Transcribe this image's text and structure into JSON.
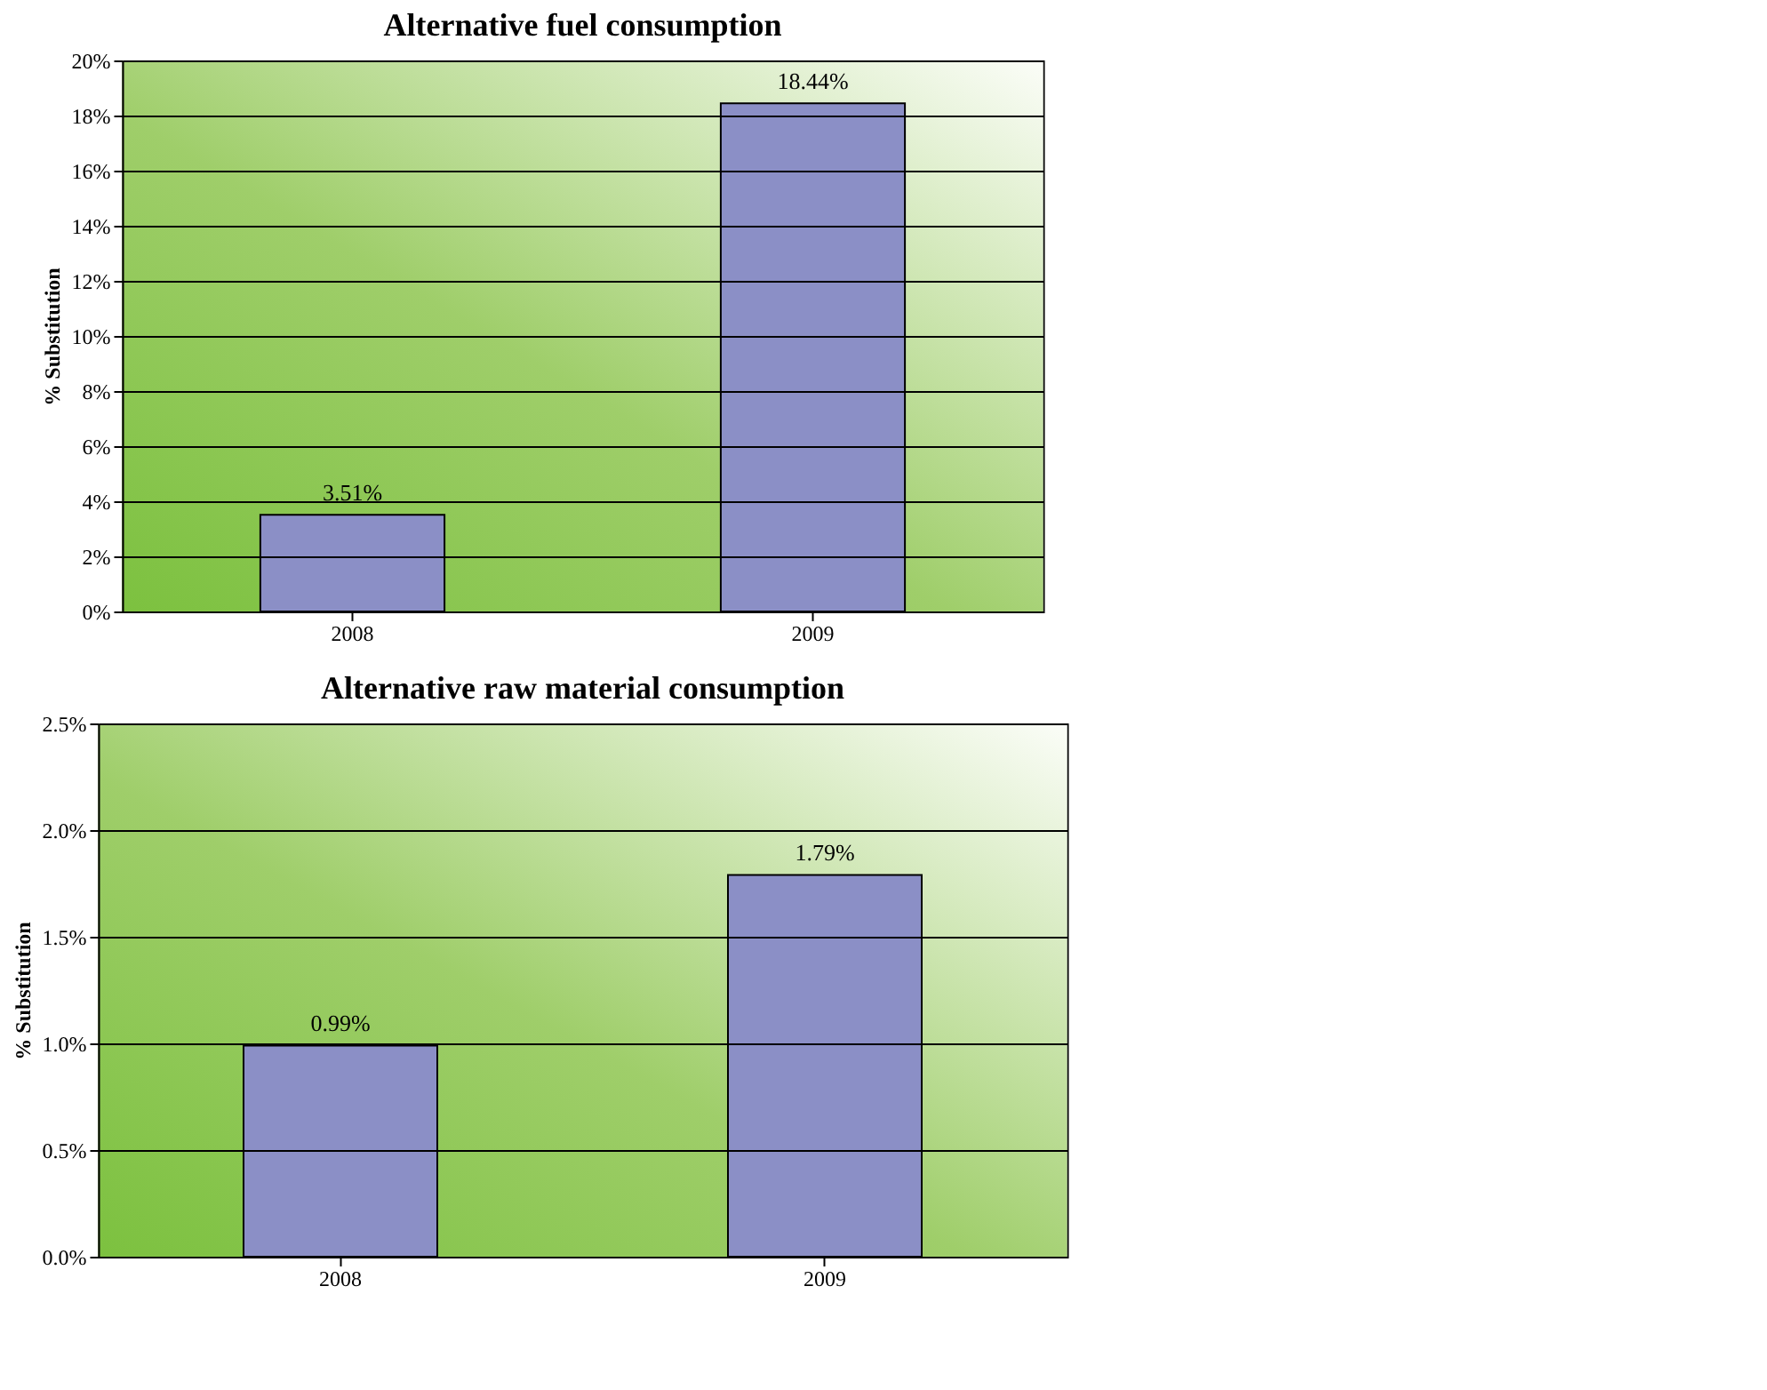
{
  "chart_data": [
    {
      "type": "bar",
      "title": "Alternative fuel consumption",
      "ylabel": "% Substitution",
      "categories": [
        "2008",
        "2009"
      ],
      "values": [
        3.51,
        18.44
      ],
      "value_labels": [
        "3.51%",
        "18.44%"
      ],
      "color": "#8b8fc6",
      "ylim": [
        0,
        20
      ],
      "yticks": [
        {
          "value": 0,
          "label": "0%"
        },
        {
          "value": 2,
          "label": "2%"
        },
        {
          "value": 4,
          "label": "4%"
        },
        {
          "value": 6,
          "label": "6%"
        },
        {
          "value": 8,
          "label": "8%"
        },
        {
          "value": 10,
          "label": "10%"
        },
        {
          "value": 12,
          "label": "12%"
        },
        {
          "value": 14,
          "label": "14%"
        },
        {
          "value": 16,
          "label": "16%"
        },
        {
          "value": 18,
          "label": "18%"
        },
        {
          "value": 20,
          "label": "20%"
        }
      ],
      "grid": "y"
    },
    {
      "type": "bar",
      "title": "Alternative raw material consumption",
      "ylabel": "% Substitution",
      "categories": [
        "2008",
        "2009"
      ],
      "values": [
        0.99,
        1.79
      ],
      "value_labels": [
        "0.99%",
        "1.79%"
      ],
      "color": "#8b8fc6",
      "ylim": [
        0,
        2.5
      ],
      "yticks": [
        {
          "value": 0,
          "label": "0.0%"
        },
        {
          "value": 0.5,
          "label": "0.5%"
        },
        {
          "value": 1.0,
          "label": "1.0%"
        },
        {
          "value": 1.5,
          "label": "1.5%"
        },
        {
          "value": 2.0,
          "label": "2.0%"
        },
        {
          "value": 2.5,
          "label": "2.5%"
        }
      ],
      "grid": "y"
    }
  ]
}
